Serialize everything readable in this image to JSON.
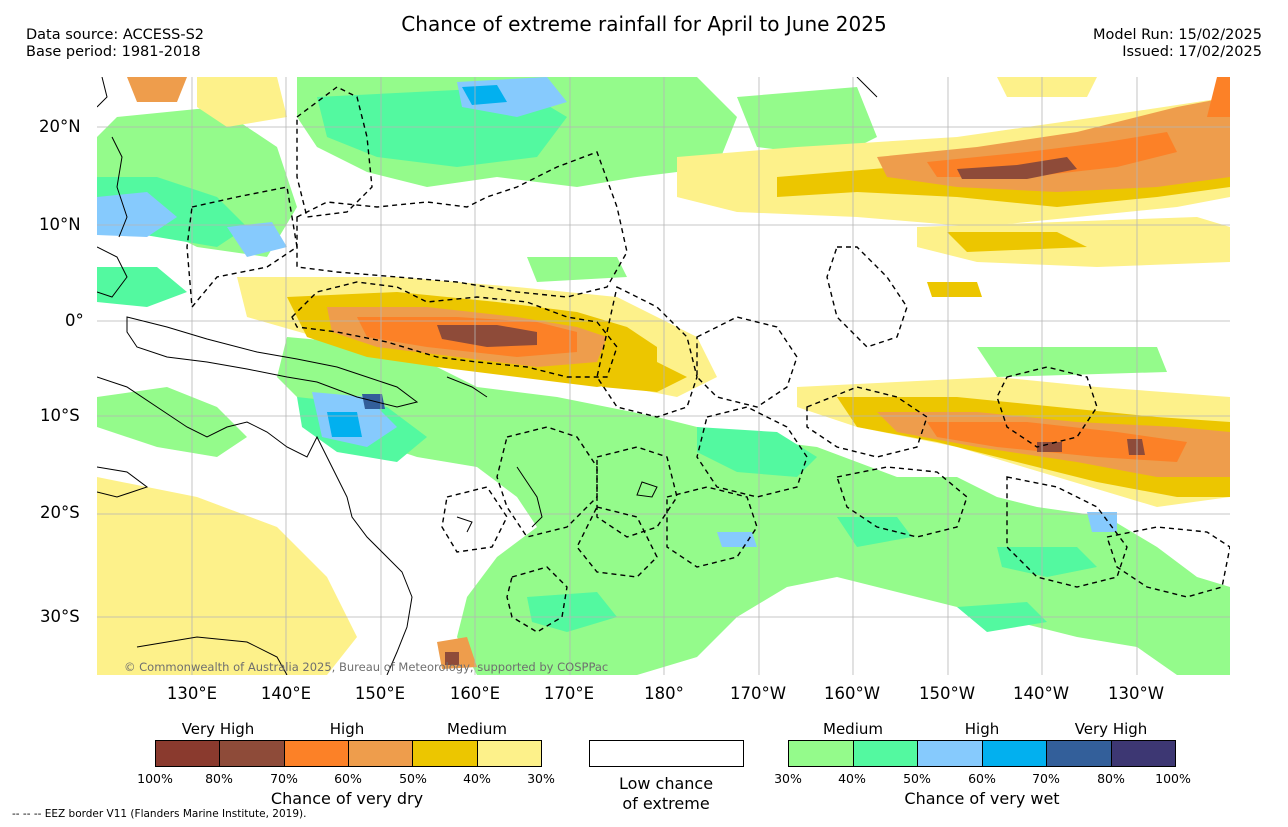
{
  "header": {
    "title": "Chance of extreme rainfall for April to June 2025",
    "source_line1": "Data source: ACCESS-S2",
    "source_line2": "Base period: 1981-2018",
    "run_line1": "Model Run: 15/02/2025",
    "run_line2": "Issued: 17/02/2025"
  },
  "map": {
    "lat_labels": [
      "20°N",
      "10°N",
      "0°",
      "10°S",
      "20°S",
      "30°S"
    ],
    "lon_labels": [
      "130°E",
      "140°E",
      "150°E",
      "160°E",
      "170°E",
      "180°",
      "170°W",
      "160°W",
      "150°W",
      "140°W",
      "130°W"
    ],
    "credit": "© Commonwealth of Australia 2025, Bureau of Meteorology, supported by COSPPac",
    "gridlines": true,
    "colors": {
      "ocean_background": "#ffffff",
      "coastline": "#000000",
      "eez_border": "#000000"
    }
  },
  "legend_dry": {
    "titles": [
      "Very High",
      "High",
      "Medium"
    ],
    "colors": [
      "#8a3a2e",
      "#8e4b39",
      "#fc8127",
      "#ee9d4c",
      "#ecc600",
      "#fdf18a"
    ],
    "ticks": [
      "100%",
      "80%",
      "70%",
      "60%",
      "50%",
      "40%",
      "30%"
    ],
    "caption": "Chance of very dry"
  },
  "legend_low": {
    "line1": "Low chance",
    "line2": "of extreme",
    "color": "#ffffff"
  },
  "legend_wet": {
    "titles": [
      "Medium",
      "High",
      "Very High"
    ],
    "colors": [
      "#94fb8b",
      "#53f9a0",
      "#86cafd",
      "#02b0ef",
      "#335f9a",
      "#3d3773"
    ],
    "ticks": [
      "30%",
      "40%",
      "50%",
      "60%",
      "70%",
      "80%",
      "100%"
    ],
    "caption": "Chance of very wet"
  },
  "footnote": "-- -- -- EEZ border V11 (Flanders Marine Institute, 2019)."
}
